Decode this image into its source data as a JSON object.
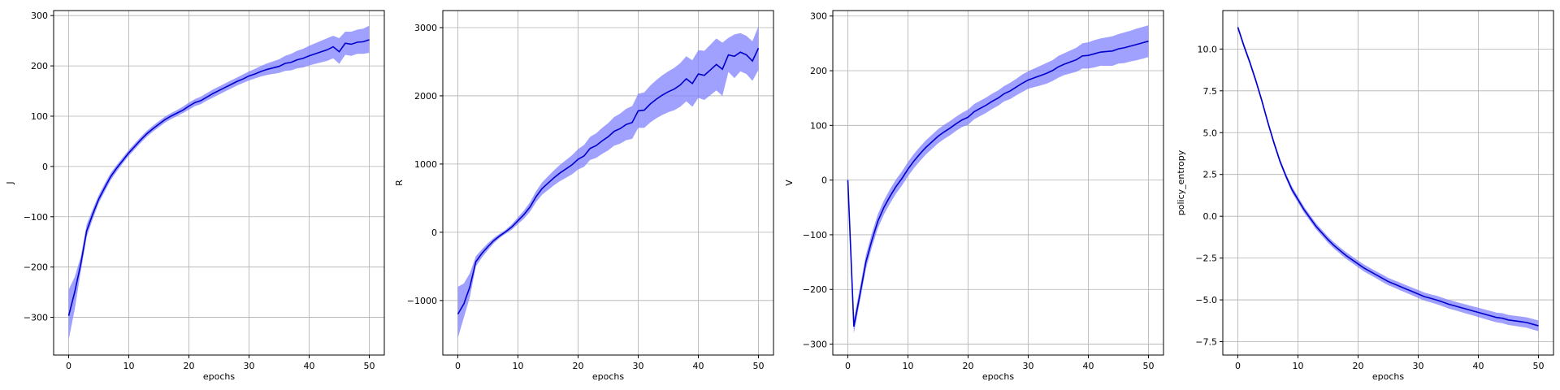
{
  "chart_data": [
    {
      "type": "line",
      "xlabel": "epochs",
      "ylabel": "J",
      "xlim": [
        -2.5,
        52.5
      ],
      "ylim": [
        -375,
        310
      ],
      "xticks": [
        0,
        10,
        20,
        30,
        40,
        50
      ],
      "yticks": [
        -300,
        -200,
        -100,
        0,
        100,
        200,
        300
      ],
      "grid": true,
      "line_color": "#0000cc",
      "band_color": "#8080ff",
      "x": [
        0,
        1,
        2,
        3,
        4,
        5,
        6,
        7,
        8,
        9,
        10,
        11,
        12,
        13,
        14,
        15,
        16,
        17,
        18,
        19,
        20,
        21,
        22,
        23,
        24,
        25,
        26,
        27,
        28,
        29,
        30,
        31,
        32,
        33,
        34,
        35,
        36,
        37,
        38,
        39,
        40,
        41,
        42,
        43,
        44,
        45,
        46,
        47,
        48,
        49,
        50
      ],
      "mean": [
        -297,
        -250,
        -195,
        -128,
        -95,
        -65,
        -42,
        -20,
        -3,
        12,
        27,
        40,
        53,
        65,
        75,
        84,
        93,
        100,
        106,
        112,
        120,
        127,
        131,
        138,
        145,
        151,
        157,
        163,
        169,
        174,
        180,
        184,
        189,
        193,
        196,
        199,
        205,
        207,
        212,
        215,
        220,
        224,
        228,
        232,
        238,
        228,
        245,
        243,
        247,
        248,
        252
      ],
      "upper": [
        -245,
        -220,
        -180,
        -115,
        -85,
        -57,
        -34,
        -13,
        3,
        18,
        33,
        46,
        59,
        71,
        81,
        90,
        99,
        106,
        112,
        119,
        127,
        134,
        139,
        146,
        153,
        159,
        165,
        171,
        177,
        183,
        189,
        194,
        200,
        205,
        209,
        213,
        220,
        224,
        230,
        234,
        240,
        245,
        250,
        255,
        260,
        255,
        268,
        268,
        272,
        274,
        280
      ],
      "lower": [
        -345,
        -285,
        -210,
        -140,
        -105,
        -73,
        -50,
        -27,
        -10,
        6,
        21,
        34,
        47,
        59,
        69,
        78,
        87,
        94,
        100,
        106,
        113,
        120,
        124,
        131,
        137,
        143,
        149,
        155,
        161,
        166,
        171,
        175,
        179,
        182,
        184,
        186,
        190,
        191,
        195,
        197,
        201,
        204,
        207,
        210,
        215,
        204,
        222,
        220,
        224,
        224,
        226
      ]
    },
    {
      "type": "line",
      "xlabel": "epochs",
      "ylabel": "R",
      "xlim": [
        -2.5,
        52.5
      ],
      "ylim": [
        -1800,
        3250
      ],
      "xticks": [
        0,
        10,
        20,
        30,
        40,
        50
      ],
      "yticks": [
        -1000,
        0,
        1000,
        2000,
        3000
      ],
      "grid": true,
      "line_color": "#0000cc",
      "band_color": "#8080ff",
      "x": [
        0,
        1,
        2,
        3,
        4,
        5,
        6,
        7,
        8,
        9,
        10,
        11,
        12,
        13,
        14,
        15,
        16,
        17,
        18,
        19,
        20,
        21,
        22,
        23,
        24,
        25,
        26,
        27,
        28,
        29,
        30,
        31,
        32,
        33,
        34,
        35,
        36,
        37,
        38,
        39,
        40,
        41,
        42,
        43,
        44,
        45,
        46,
        47,
        48,
        49,
        50
      ],
      "mean": [
        -1200,
        -1050,
        -800,
        -430,
        -310,
        -210,
        -120,
        -50,
        10,
        80,
        170,
        260,
        370,
        520,
        640,
        720,
        800,
        870,
        930,
        990,
        1070,
        1120,
        1230,
        1270,
        1340,
        1400,
        1480,
        1520,
        1580,
        1610,
        1780,
        1790,
        1880,
        1950,
        2010,
        2060,
        2100,
        2160,
        2250,
        2180,
        2320,
        2300,
        2380,
        2460,
        2390,
        2600,
        2580,
        2640,
        2600,
        2510,
        2700
      ],
      "upper": [
        -800,
        -750,
        -600,
        -350,
        -250,
        -160,
        -80,
        -20,
        40,
        120,
        220,
        320,
        440,
        600,
        730,
        820,
        910,
        990,
        1060,
        1130,
        1220,
        1280,
        1400,
        1450,
        1530,
        1600,
        1690,
        1740,
        1810,
        1850,
        2030,
        2050,
        2150,
        2230,
        2300,
        2360,
        2410,
        2480,
        2580,
        2520,
        2670,
        2660,
        2750,
        2840,
        2780,
        2850,
        2900,
        2920,
        2880,
        2800,
        3020
      ],
      "lower": [
        -1550,
        -1250,
        -950,
        -500,
        -370,
        -260,
        -160,
        -80,
        -20,
        40,
        120,
        200,
        300,
        440,
        550,
        620,
        690,
        750,
        800,
        850,
        920,
        960,
        1060,
        1090,
        1150,
        1200,
        1270,
        1300,
        1350,
        1370,
        1530,
        1530,
        1610,
        1670,
        1720,
        1760,
        1790,
        1840,
        1920,
        1840,
        1970,
        1940,
        2010,
        2080,
        2000,
        2350,
        2260,
        2360,
        2320,
        2220,
        2380
      ]
    },
    {
      "type": "line",
      "xlabel": "epochs",
      "ylabel": "V",
      "xlim": [
        -2.5,
        52.5
      ],
      "ylim": [
        -320,
        310
      ],
      "xticks": [
        0,
        10,
        20,
        30,
        40,
        50
      ],
      "yticks": [
        -300,
        -200,
        -100,
        0,
        100,
        200,
        300
      ],
      "grid": true,
      "line_color": "#0000cc",
      "band_color": "#8080ff",
      "x": [
        0,
        1,
        2,
        3,
        4,
        5,
        6,
        7,
        8,
        9,
        10,
        11,
        12,
        13,
        14,
        15,
        16,
        17,
        18,
        19,
        20,
        21,
        22,
        23,
        24,
        25,
        26,
        27,
        28,
        29,
        30,
        31,
        32,
        33,
        34,
        35,
        36,
        37,
        38,
        39,
        40,
        41,
        42,
        43,
        44,
        45,
        46,
        47,
        48,
        49,
        50
      ],
      "mean": [
        0,
        -268,
        -210,
        -150,
        -110,
        -75,
        -50,
        -30,
        -12,
        3,
        20,
        35,
        48,
        60,
        70,
        80,
        88,
        95,
        103,
        110,
        115,
        125,
        131,
        137,
        144,
        150,
        158,
        163,
        170,
        177,
        183,
        187,
        191,
        195,
        200,
        207,
        212,
        216,
        220,
        227,
        228,
        231,
        234,
        235,
        236,
        240,
        242,
        245,
        248,
        251,
        254
      ],
      "upper": [
        4,
        -255,
        -197,
        -137,
        -97,
        -62,
        -37,
        -17,
        1,
        16,
        33,
        48,
        61,
        73,
        83,
        93,
        101,
        108,
        116,
        123,
        129,
        139,
        145,
        151,
        158,
        164,
        172,
        178,
        185,
        193,
        199,
        204,
        209,
        214,
        219,
        227,
        232,
        237,
        242,
        250,
        252,
        256,
        259,
        261,
        263,
        267,
        270,
        273,
        277,
        280,
        283
      ],
      "lower": [
        -4,
        -280,
        -222,
        -163,
        -123,
        -88,
        -63,
        -43,
        -25,
        -10,
        7,
        22,
        35,
        47,
        57,
        67,
        75,
        82,
        90,
        97,
        101,
        111,
        117,
        123,
        130,
        136,
        144,
        148,
        155,
        161,
        167,
        170,
        173,
        176,
        181,
        187,
        192,
        195,
        198,
        204,
        204,
        206,
        209,
        209,
        209,
        213,
        214,
        217,
        219,
        222,
        225
      ]
    },
    {
      "type": "line",
      "xlabel": "epochs",
      "ylabel": "policy_entropy",
      "xlim": [
        -2.5,
        52.5
      ],
      "ylim": [
        -8.3,
        12.3
      ],
      "xticks": [
        0,
        10,
        20,
        30,
        40,
        50
      ],
      "yticks": [
        -7.5,
        -5.0,
        -2.5,
        0.0,
        2.5,
        5.0,
        7.5,
        10.0
      ],
      "ytick_labels": [
        "−7.5",
        "−5.0",
        "−2.5",
        "0.0",
        "2.5",
        "5.0",
        "7.5",
        "10.0"
      ],
      "grid": true,
      "line_color": "#0000cc",
      "band_color": "#8080ff",
      "x": [
        0,
        1,
        2,
        3,
        4,
        5,
        6,
        7,
        8,
        9,
        10,
        11,
        12,
        13,
        14,
        15,
        16,
        17,
        18,
        19,
        20,
        21,
        22,
        23,
        24,
        25,
        26,
        27,
        28,
        29,
        30,
        31,
        32,
        33,
        34,
        35,
        36,
        37,
        38,
        39,
        40,
        41,
        42,
        43,
        44,
        45,
        46,
        47,
        48,
        49,
        50
      ],
      "mean": [
        11.3,
        10.2,
        9.2,
        8.1,
        6.9,
        5.6,
        4.4,
        3.3,
        2.4,
        1.6,
        1.0,
        0.4,
        -0.1,
        -0.6,
        -1.0,
        -1.4,
        -1.75,
        -2.05,
        -2.35,
        -2.6,
        -2.85,
        -3.1,
        -3.3,
        -3.5,
        -3.7,
        -3.9,
        -4.05,
        -4.2,
        -4.35,
        -4.5,
        -4.65,
        -4.8,
        -4.9,
        -5.0,
        -5.12,
        -5.25,
        -5.35,
        -5.45,
        -5.55,
        -5.65,
        -5.75,
        -5.85,
        -5.95,
        -6.05,
        -6.1,
        -6.2,
        -6.25,
        -6.3,
        -6.35,
        -6.45,
        -6.55
      ],
      "upper": [
        11.45,
        10.35,
        9.35,
        8.25,
        7.05,
        5.75,
        4.55,
        3.45,
        2.55,
        1.78,
        1.18,
        0.58,
        0.08,
        -0.42,
        -0.82,
        -1.21,
        -1.56,
        -1.86,
        -2.15,
        -2.4,
        -2.65,
        -2.89,
        -3.09,
        -3.29,
        -3.48,
        -3.68,
        -3.83,
        -3.97,
        -4.12,
        -4.27,
        -4.41,
        -4.56,
        -4.66,
        -4.75,
        -4.87,
        -4.99,
        -5.09,
        -5.19,
        -5.28,
        -5.38,
        -5.47,
        -5.57,
        -5.66,
        -5.76,
        -5.8,
        -5.9,
        -5.95,
        -5.99,
        -6.04,
        -6.13,
        -6.23
      ],
      "lower": [
        11.15,
        10.05,
        9.05,
        7.95,
        6.75,
        5.45,
        4.25,
        3.15,
        2.25,
        1.42,
        0.82,
        0.22,
        -0.28,
        -0.78,
        -1.18,
        -1.59,
        -1.94,
        -2.24,
        -2.55,
        -2.8,
        -3.05,
        -3.31,
        -3.51,
        -3.71,
        -3.92,
        -4.12,
        -4.27,
        -4.43,
        -4.58,
        -4.73,
        -4.89,
        -5.04,
        -5.14,
        -5.25,
        -5.37,
        -5.51,
        -5.61,
        -5.71,
        -5.82,
        -5.92,
        -6.03,
        -6.13,
        -6.24,
        -6.34,
        -6.4,
        -6.5,
        -6.55,
        -6.61,
        -6.66,
        -6.77,
        -6.87
      ]
    }
  ]
}
